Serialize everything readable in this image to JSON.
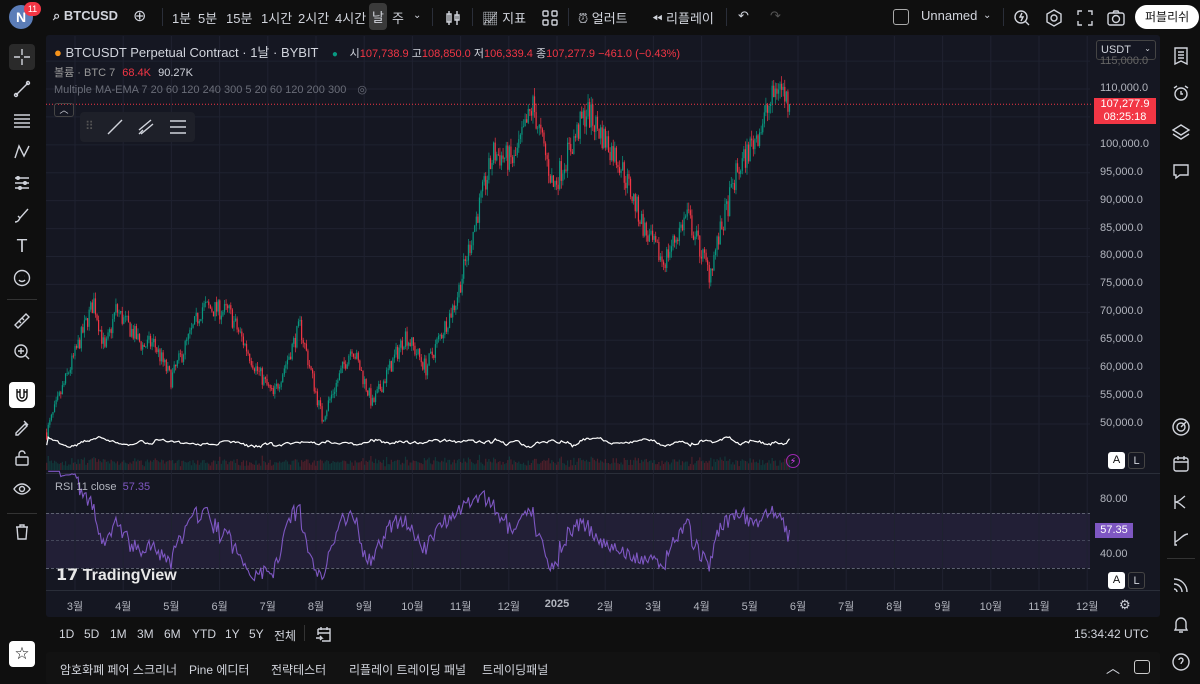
{
  "topbar": {
    "avatar_letter": "N",
    "notification_count": "11",
    "symbol": "BTCUSD",
    "timeframes": [
      "1분",
      "5분",
      "15분",
      "1시간",
      "2시간",
      "4시간",
      "날",
      "주"
    ],
    "active_timeframe": "날",
    "indicators_label": "지표",
    "alert_label": "얼러트",
    "replay_label": "리플레이",
    "layout_name": "Unnamed",
    "publish_label": "퍼블리쉬"
  },
  "legend": {
    "title": "BTCUSDT Perpetual Contract · 1날 · BYBIT",
    "open_label": "시",
    "open": "107,738.9",
    "high_label": "고",
    "high": "108,850.0",
    "low_label": "저",
    "low": "106,339.4",
    "close_label": "종",
    "close": "107,277.9",
    "change": "−461.0 (−0.43%)",
    "volume_label": "볼륨 · BTC 7",
    "volume_value": "68.4K",
    "volume_ma": "90.27K",
    "ma_label": "Multiple MA-EMA 7 20 60 120 240 300 5 20 60 120 200 300"
  },
  "price_axis": {
    "currency": "USDT",
    "labels": [
      "115,000.0",
      "110,000.0",
      "100,000.0",
      "95,000.0",
      "90,000.0",
      "85,000.0",
      "80,000.0",
      "75,000.0",
      "70,000.0",
      "65,000.0",
      "60,000.0",
      "55,000.0",
      "50,000.0"
    ],
    "last_price": "107,277.9",
    "countdown": "08:25:18"
  },
  "rsi": {
    "label": "RSI 11 close",
    "value": "57.35",
    "axis_labels": [
      "80.00",
      "40.00"
    ]
  },
  "time_axis": [
    "3월",
    "4월",
    "5월",
    "6월",
    "7월",
    "8월",
    "9월",
    "10월",
    "11월",
    "12월",
    "2025",
    "2월",
    "3월",
    "4월",
    "5월",
    "6월",
    "7월",
    "8월",
    "9월",
    "10월",
    "11월",
    "12월"
  ],
  "scale_buttons": {
    "auto": "A",
    "log": "L"
  },
  "watermark": "TradingView",
  "range_buttons": [
    "1D",
    "5D",
    "1M",
    "3M",
    "6M",
    "YTD",
    "1Y",
    "5Y",
    "전체"
  ],
  "clock": "15:34:42 UTC",
  "bottom_tabs": [
    "암호화폐 페어 스크리너",
    "Pine 에디터",
    "전략테스터",
    "리플레이 트레이딩 패널",
    "트레이딩패널"
  ],
  "colors": {
    "up": "#089981",
    "down": "#f23645",
    "rsi": "#7e57c2",
    "background": "#151722"
  },
  "chart_data": {
    "type": "candlestick",
    "symbol": "BTCUSDT",
    "interval": "1D",
    "ylim": [
      45000,
      116000
    ],
    "price_anchors": [
      [
        "2024-02-12",
        48500
      ],
      [
        "2024-02-28",
        61000
      ],
      [
        "2024-03-13",
        72000
      ],
      [
        "2024-03-20",
        63000
      ],
      [
        "2024-03-27",
        70500
      ],
      [
        "2024-04-13",
        64000
      ],
      [
        "2024-04-20",
        64500
      ],
      [
        "2024-05-01",
        58000
      ],
      [
        "2024-05-21",
        71000
      ],
      [
        "2024-06-07",
        70000
      ],
      [
        "2024-06-24",
        60000
      ],
      [
        "2024-07-05",
        55000
      ],
      [
        "2024-07-22",
        67500
      ],
      [
        "2024-08-05",
        51000
      ],
      [
        "2024-08-24",
        64000
      ],
      [
        "2024-09-06",
        53500
      ],
      [
        "2024-09-27",
        66000
      ],
      [
        "2024-10-10",
        60000
      ],
      [
        "2024-10-29",
        72000
      ],
      [
        "2024-11-12",
        88000
      ],
      [
        "2024-11-22",
        98500
      ],
      [
        "2024-12-05",
        97000
      ],
      [
        "2024-12-17",
        107000
      ],
      [
        "2024-12-30",
        92500
      ],
      [
        "2025-01-20",
        106000
      ],
      [
        "2025-02-10",
        97000
      ],
      [
        "2025-02-27",
        84000
      ],
      [
        "2025-03-10",
        79000
      ],
      [
        "2025-03-25",
        87500
      ],
      [
        "2025-04-08",
        77000
      ],
      [
        "2025-04-25",
        94500
      ],
      [
        "2025-05-12",
        104000
      ],
      [
        "2025-05-22",
        111000
      ],
      [
        "2025-05-29",
        107278
      ]
    ],
    "rsi_period": 11,
    "rsi_levels": [
      70,
      50,
      30
    ],
    "rsi_last": 57.35,
    "last_close": 107277.9
  }
}
